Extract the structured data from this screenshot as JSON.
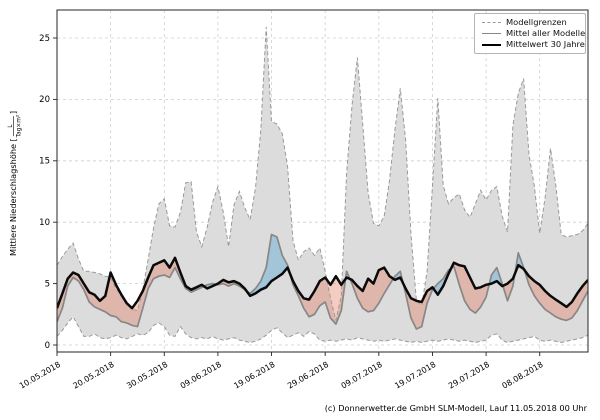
{
  "caption": "(c) Donnerwetter.de GmbH SLM-Modell, Lauf 11.05.2018 00 Uhr",
  "chart_data": {
    "type": "line",
    "title": "",
    "xlabel": "",
    "ylabel": {
      "prefix": "Mittlere Niederschlagshöhe [",
      "frac_num": "L",
      "frac_den": "Tag×m²",
      "suffix": "]"
    },
    "grid": true,
    "ylim": [
      0,
      25
    ],
    "y_ticks": [
      0,
      5,
      10,
      15,
      20,
      25
    ],
    "x_tick_days": [
      0,
      10,
      20,
      30,
      40,
      50,
      60,
      70,
      80,
      90
    ],
    "x_tick_labels": [
      "10.05.2018",
      "20.05.2018",
      "30.05.2018",
      "09.06.2018",
      "19.06.2018",
      "29.06.2018",
      "09.07.2018",
      "19.07.2018",
      "29.07.2018",
      "08.08.2018"
    ],
    "n_points": 100,
    "legend": {
      "position": "upper right",
      "entries": [
        {
          "label": "Modellgrenzen",
          "style": "dashed-gray"
        },
        {
          "label": "Mittel aller Modelle",
          "style": "solid-gray"
        },
        {
          "label": "Mittelwert 30 Jahre",
          "style": "solid-black"
        }
      ]
    },
    "colors": {
      "envelope_fill": "#dcdcdc",
      "envelope_edge": "#999999",
      "model_mean_line": "#878787",
      "mean30_line": "#0a0a0a",
      "below_mean_fill": "#e57a5c",
      "above_mean_fill": "#5aa9d6",
      "grid": "#cfcfcf",
      "spine": "#262626"
    },
    "series": [
      {
        "name": "Modellgrenzen (unten)",
        "values": [
          0.7,
          1.2,
          1.8,
          2.3,
          1.5,
          0.7,
          0.7,
          0.9,
          0.6,
          0.5,
          0.6,
          0.8,
          0.6,
          0.5,
          0.7,
          0.9,
          0.8,
          1.0,
          1.6,
          1.8,
          1.5,
          0.8,
          0.7,
          1.5,
          0.9,
          0.6,
          0.5,
          0.6,
          0.5,
          0.7,
          0.5,
          0.4,
          0.5,
          0.6,
          0.4,
          0.3,
          0.2,
          0.3,
          0.5,
          0.8,
          1.2,
          1.4,
          1.0,
          0.6,
          0.8,
          1.0,
          0.7,
          1.1,
          0.9,
          0.4,
          0.3,
          0.4,
          0.3,
          0.4,
          0.5,
          0.4,
          0.6,
          0.5,
          0.4,
          0.3,
          0.4,
          0.3,
          0.4,
          0.5,
          0.4,
          0.3,
          0.2,
          0.3,
          0.2,
          0.3,
          0.4,
          0.3,
          0.4,
          0.5,
          0.4,
          0.3,
          0.4,
          0.3,
          0.2,
          0.3,
          0.4,
          0.8,
          0.9,
          0.4,
          0.2,
          0.3,
          0.4,
          0.5,
          0.6,
          0.7,
          0.4,
          0.3,
          0.4,
          0.3,
          0.2,
          0.3,
          0.4,
          0.5,
          0.6,
          0.8
        ]
      },
      {
        "name": "Modellgrenzen (oben)",
        "values": [
          6.5,
          7.2,
          7.8,
          8.3,
          7.0,
          6.0,
          6.0,
          5.9,
          5.8,
          5.6,
          5.5,
          4.6,
          4.0,
          3.3,
          2.9,
          2.8,
          4.5,
          7.0,
          9.5,
          11.5,
          11.9,
          9.7,
          9.6,
          10.8,
          13.2,
          13.3,
          9.2,
          8.0,
          9.6,
          11.6,
          12.9,
          10.8,
          8.0,
          11.4,
          12.5,
          11.2,
          10.2,
          12.8,
          17.5,
          25.9,
          18.2,
          18.0,
          17.2,
          14.5,
          8.5,
          6.9,
          7.6,
          7.9,
          7.3,
          7.9,
          6.0,
          3.8,
          2.0,
          4.0,
          14.0,
          19.5,
          23.4,
          18.0,
          12.4,
          9.9,
          9.7,
          10.5,
          13.4,
          17.5,
          20.9,
          16.7,
          9.0,
          3.6,
          3.2,
          6.0,
          13.0,
          20.1,
          13.0,
          11.5,
          12.0,
          12.3,
          11.0,
          10.4,
          11.5,
          12.6,
          11.8,
          12.6,
          12.9,
          10.5,
          9.2,
          17.9,
          20.5,
          21.7,
          15.5,
          12.9,
          9.1,
          12.0,
          16.0,
          13.0,
          9.0,
          8.8,
          8.9,
          9.0,
          9.3,
          9.9
        ]
      },
      {
        "name": "Mittel aller Modelle",
        "values": [
          1.9,
          3.0,
          4.8,
          5.5,
          5.2,
          4.5,
          3.5,
          3.1,
          2.9,
          2.7,
          2.4,
          2.3,
          1.9,
          1.8,
          1.6,
          1.5,
          3.0,
          4.6,
          5.4,
          5.6,
          5.7,
          5.5,
          6.3,
          5.4,
          4.6,
          4.3,
          4.5,
          4.7,
          4.9,
          5.0,
          4.9,
          5.0,
          4.8,
          5.0,
          4.8,
          4.5,
          4.2,
          4.6,
          5.2,
          6.3,
          9.0,
          8.8,
          7.3,
          6.5,
          4.9,
          4.0,
          3.0,
          2.3,
          2.5,
          3.2,
          3.5,
          2.2,
          1.7,
          2.8,
          6.0,
          5.0,
          3.8,
          3.0,
          2.7,
          2.8,
          3.4,
          4.2,
          4.9,
          5.6,
          6.0,
          4.2,
          2.2,
          1.3,
          1.5,
          3.4,
          4.5,
          5.0,
          5.4,
          6.1,
          6.4,
          4.9,
          3.6,
          2.9,
          2.6,
          3.1,
          3.9,
          5.7,
          6.3,
          5.0,
          3.6,
          4.8,
          7.5,
          6.3,
          4.9,
          4.0,
          3.4,
          2.9,
          2.6,
          2.3,
          2.1,
          2.0,
          2.2,
          2.8,
          3.6,
          4.4
        ]
      },
      {
        "name": "Mittelwert 30 Jahre",
        "values": [
          3.0,
          4.2,
          5.4,
          5.9,
          5.7,
          5.0,
          4.3,
          4.1,
          3.6,
          4.0,
          5.9,
          4.9,
          4.1,
          3.4,
          3.0,
          3.6,
          4.4,
          5.5,
          6.5,
          6.7,
          6.9,
          6.3,
          7.1,
          5.9,
          4.8,
          4.5,
          4.7,
          4.9,
          4.6,
          4.8,
          5.0,
          5.3,
          5.1,
          5.2,
          5.0,
          4.6,
          4.0,
          4.2,
          4.5,
          4.7,
          5.2,
          5.5,
          5.8,
          6.3,
          5.2,
          4.4,
          3.8,
          3.7,
          4.4,
          5.2,
          5.5,
          4.9,
          5.6,
          4.9,
          5.5,
          5.3,
          4.8,
          4.4,
          5.4,
          5.0,
          6.1,
          6.3,
          5.6,
          5.3,
          5.5,
          4.6,
          3.8,
          3.6,
          3.5,
          4.4,
          4.7,
          4.1,
          4.8,
          5.8,
          6.7,
          6.5,
          6.4,
          5.5,
          4.6,
          4.7,
          4.9,
          5.0,
          5.2,
          4.8,
          5.0,
          5.4,
          6.5,
          6.2,
          5.6,
          5.2,
          4.9,
          4.4,
          4.0,
          3.7,
          3.4,
          3.1,
          3.5,
          4.2,
          4.8,
          5.3
        ]
      }
    ]
  }
}
